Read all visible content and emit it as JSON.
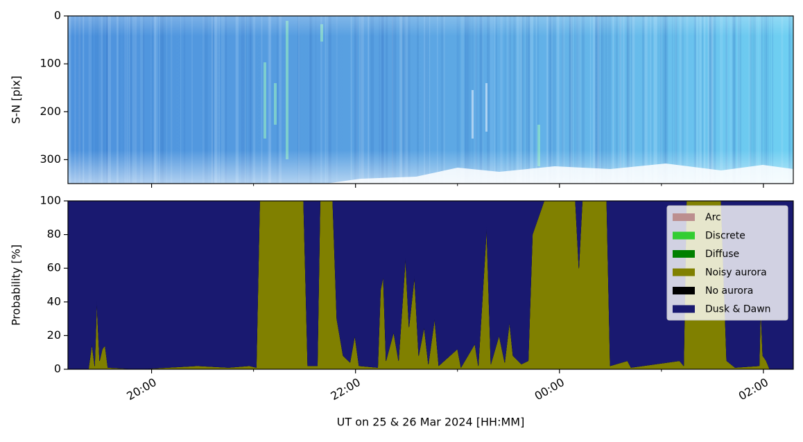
{
  "chart_data": [
    {
      "type": "image",
      "ylabel": "S-N [pix]",
      "ylim": [
        350,
        0
      ],
      "yticks": [
        0,
        100,
        200,
        300
      ],
      "xlim": [
        19.18,
        26.293
      ],
      "xticks": [
        {
          "value": 20,
          "label": "20:00"
        },
        {
          "value": 22,
          "label": "22:00"
        },
        {
          "value": 24,
          "label": "00:00"
        },
        {
          "value": 26,
          "label": "02:00"
        }
      ],
      "xminorticks": [
        21,
        23,
        25
      ]
    },
    {
      "type": "area",
      "stacked": true,
      "ylabel": "Probability [%]",
      "xlabel": "UT on 25 & 26 Mar 2024 [HH:MM]",
      "xlim": [
        19.18,
        26.293
      ],
      "ylim": [
        0,
        100
      ],
      "yticks": [
        0,
        20,
        40,
        60,
        80,
        100
      ],
      "xticks": [
        {
          "value": 20,
          "label": "20:00"
        },
        {
          "value": 22,
          "label": "22:00"
        },
        {
          "value": 24,
          "label": "00:00"
        },
        {
          "value": 26,
          "label": "02:00"
        }
      ],
      "xminorticks": [
        21,
        23,
        25
      ],
      "legend": "upper right",
      "x": [
        19.18,
        19.381,
        19.415,
        19.442,
        19.463,
        19.49,
        19.517,
        19.544,
        19.571,
        19.871,
        20.449,
        20.755,
        20.959,
        21.027,
        21.061,
        21.49,
        21.531,
        21.626,
        21.653,
        21.776,
        21.816,
        21.878,
        21.946,
        21.993,
        22.034,
        22.218,
        22.245,
        22.272,
        22.299,
        22.374,
        22.422,
        22.49,
        22.524,
        22.578,
        22.619,
        22.673,
        22.714,
        22.776,
        22.816,
        23.0,
        23.034,
        23.17,
        23.204,
        23.286,
        23.327,
        23.408,
        23.463,
        23.51,
        23.544,
        23.626,
        23.694,
        23.735,
        23.85,
        24.156,
        24.19,
        24.224,
        24.463,
        24.497,
        24.667,
        24.701,
        25.177,
        25.218,
        25.245,
        25.585,
        25.639,
        25.721,
        25.959,
        25.973,
        25.993,
        26.027,
        26.061,
        26.293
      ],
      "series": [
        {
          "name": "Arc",
          "color": "#bc8f8f",
          "values": [
            0,
            0,
            0,
            0,
            0,
            0,
            0,
            0,
            0,
            0,
            0,
            0,
            0,
            0,
            0,
            0,
            0,
            0,
            0,
            0,
            0,
            0,
            0,
            0,
            0,
            0,
            0,
            0,
            0,
            0,
            0,
            0,
            0,
            0,
            0,
            0,
            0,
            0,
            0,
            0,
            0,
            0,
            0,
            0,
            0,
            0,
            0,
            0,
            0,
            0,
            0,
            0,
            0,
            0,
            0,
            0,
            0,
            0,
            0,
            0,
            0,
            0,
            0,
            0,
            0,
            0,
            0,
            0,
            0,
            0,
            0,
            0
          ]
        },
        {
          "name": "Discrete",
          "color": "#32cd32",
          "values": [
            0,
            0,
            0,
            0,
            0,
            0,
            0,
            0,
            0,
            0,
            0,
            0,
            0,
            0,
            0,
            0,
            0,
            0,
            0,
            0,
            0,
            0,
            0,
            0,
            0,
            0,
            0,
            0,
            0,
            0,
            0,
            0,
            0,
            0,
            0,
            0,
            0,
            0,
            0,
            0,
            0,
            0,
            0,
            0,
            0,
            0,
            0,
            0,
            0,
            0,
            0,
            0,
            0,
            0,
            0,
            0,
            0,
            0,
            0,
            0,
            0,
            0,
            0,
            0,
            0,
            0,
            0,
            0,
            0,
            0,
            0,
            0
          ]
        },
        {
          "name": "Diffuse",
          "color": "#008000",
          "values": [
            0,
            0,
            0,
            0,
            0,
            0,
            0,
            0,
            0,
            0,
            0,
            0,
            0,
            0,
            0,
            0,
            0,
            0,
            0,
            0,
            0,
            0,
            0,
            0,
            0,
            0,
            0,
            0,
            0,
            0,
            0,
            0,
            0,
            0,
            0,
            0,
            0,
            0,
            0,
            0,
            0,
            0,
            0,
            0,
            0,
            0,
            0,
            0,
            0,
            0,
            0,
            0,
            0,
            0,
            0,
            0,
            0,
            0,
            0,
            0,
            0,
            0,
            0,
            0,
            0,
            0,
            0,
            0,
            0,
            0,
            0,
            0
          ]
        },
        {
          "name": "Noisy aurora",
          "color": "#808000",
          "values": [
            0,
            0,
            15,
            2,
            40,
            5,
            12,
            14,
            1,
            0,
            2,
            1,
            2,
            1,
            100,
            100,
            2,
            2,
            100,
            100,
            30,
            8,
            4,
            20,
            2,
            1,
            47,
            55,
            5,
            22,
            5,
            66,
            25,
            55,
            8,
            25,
            3,
            30,
            2,
            12,
            1,
            15,
            2,
            84,
            3,
            20,
            4,
            28,
            8,
            3,
            5,
            80,
            100,
            100,
            60,
            100,
            100,
            2,
            5,
            1,
            5,
            2,
            100,
            100,
            5,
            1,
            2,
            38,
            8,
            5,
            0,
            0
          ]
        },
        {
          "name": "No aurora",
          "color": "#000000",
          "values": [
            0,
            0,
            0,
            0,
            0,
            0,
            0,
            0,
            0,
            0,
            0,
            0,
            0,
            0,
            0,
            0,
            0,
            0,
            0,
            0,
            0,
            0,
            0,
            0,
            0,
            0,
            0,
            0,
            0,
            0,
            0,
            0,
            0,
            0,
            0,
            0,
            0,
            0,
            0,
            0,
            0,
            0,
            0,
            0,
            0,
            0,
            0,
            0,
            0,
            0,
            0,
            0,
            0,
            0,
            0,
            0,
            0,
            0,
            0,
            0,
            0,
            0,
            0,
            0,
            0,
            0,
            0,
            0,
            0,
            0,
            0,
            0
          ]
        },
        {
          "name": "Dusk & Dawn",
          "color": "#191970",
          "values": [
            100,
            100,
            85,
            98,
            60,
            95,
            88,
            86,
            99,
            100,
            98,
            99,
            98,
            99,
            0,
            0,
            98,
            98,
            0,
            0,
            70,
            92,
            96,
            80,
            98,
            99,
            53,
            45,
            95,
            78,
            95,
            34,
            75,
            45,
            92,
            75,
            97,
            70,
            98,
            88,
            99,
            85,
            98,
            16,
            97,
            80,
            96,
            72,
            92,
            97,
            95,
            20,
            0,
            0,
            40,
            0,
            0,
            98,
            95,
            99,
            95,
            98,
            0,
            0,
            95,
            99,
            98,
            62,
            92,
            95,
            100,
            100
          ]
        }
      ]
    }
  ]
}
